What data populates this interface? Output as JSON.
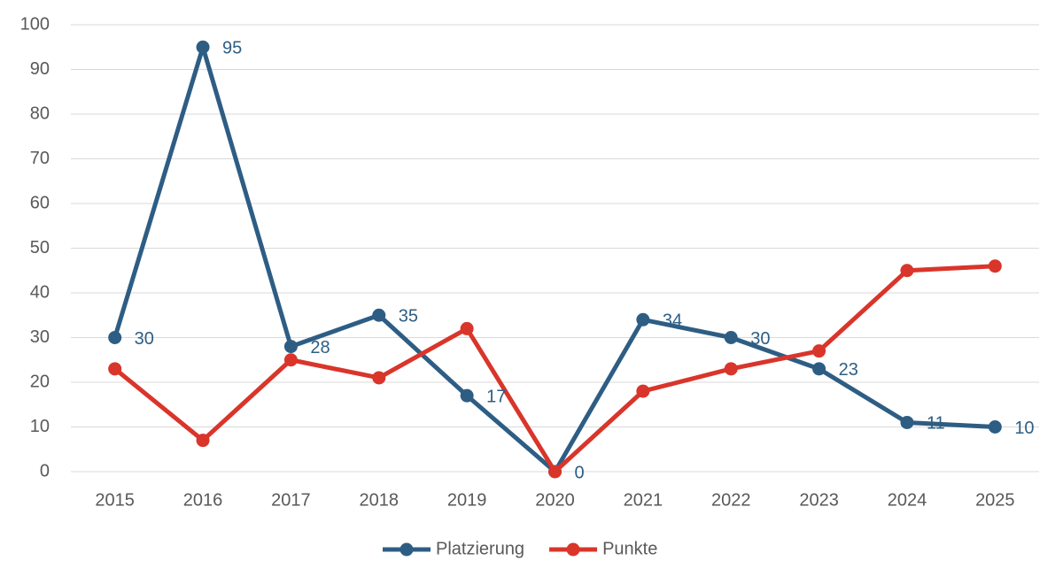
{
  "chart_data": {
    "type": "line",
    "categories": [
      "2015",
      "2016",
      "2017",
      "2018",
      "2019",
      "2020",
      "2021",
      "2022",
      "2023",
      "2024",
      "2025"
    ],
    "series": [
      {
        "name": "Platzierung",
        "color": "#2e5d84",
        "show_labels": true,
        "values": [
          30,
          95,
          28,
          35,
          17,
          0,
          34,
          30,
          23,
          11,
          10
        ]
      },
      {
        "name": "Punkte",
        "color": "#d9352b",
        "show_labels": false,
        "values": [
          23,
          7,
          25,
          21,
          32,
          0,
          18,
          23,
          27,
          45,
          46
        ]
      }
    ],
    "ylim": [
      0,
      100
    ],
    "yticks": [
      0,
      10,
      20,
      30,
      40,
      50,
      60,
      70,
      80,
      90,
      100
    ],
    "grid": true,
    "legend": "bottom"
  }
}
